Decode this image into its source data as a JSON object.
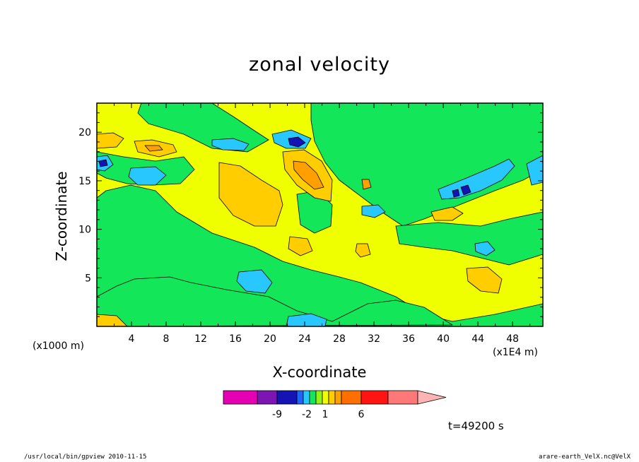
{
  "chart_data": {
    "type": "heatmap",
    "title": "zonal velocity",
    "xlabel": "X-coordinate",
    "ylabel": "Z-coordinate",
    "x_unit_note": "(x1000 m)",
    "x_scale_note": "(x1E4 m)",
    "xlim": [
      0,
      51.5
    ],
    "ylim": [
      0,
      23
    ],
    "x_ticks": [
      4,
      8,
      12,
      16,
      20,
      24,
      28,
      32,
      36,
      40,
      44,
      48
    ],
    "y_ticks": [
      5,
      10,
      15,
      20
    ],
    "time_label": "t=49200 s",
    "colorbar": {
      "colors": [
        "#e600b4",
        "#7d14b4",
        "#1414b4",
        "#1e64ff",
        "#28c8ff",
        "#14e65a",
        "#96f014",
        "#f0ff00",
        "#ffcd00",
        "#ffa000",
        "#ff6e00",
        "#ff1414",
        "#ff7878",
        "#ffb4b4"
      ],
      "tick_labels": [
        "-9",
        "-2",
        "1",
        "6"
      ]
    },
    "regions": [
      {
        "name": "yellow",
        "color": "#f0ff00"
      },
      {
        "name": "green",
        "color": "#14e65a"
      },
      {
        "name": "cyan",
        "color": "#28c8ff"
      },
      {
        "name": "orange",
        "color": "#ffcd00"
      },
      {
        "name": "dark-orange",
        "color": "#ffa000"
      },
      {
        "name": "blue",
        "color": "#1414b4"
      }
    ]
  },
  "footer": {
    "left": "/usr/local/bin/gpview  2010-11-15",
    "right": "arare-earth_VelX.nc@VelX"
  }
}
